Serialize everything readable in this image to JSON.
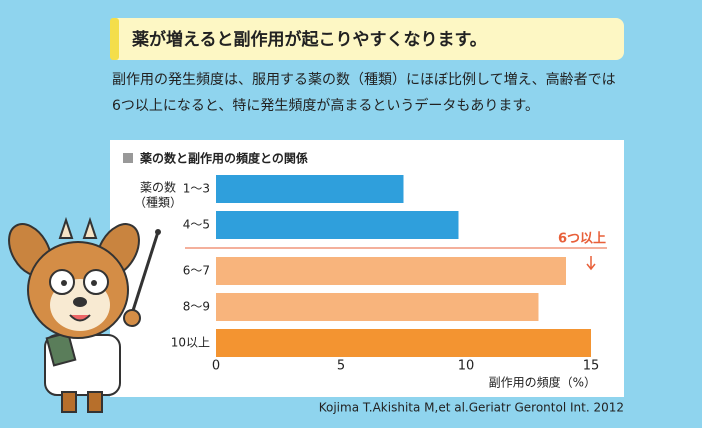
{
  "header": {
    "title": "薬が増えると副作用が起こりやすくなります。"
  },
  "intro": {
    "lines": [
      "副作用の発生頻度は、服用する薬の数（種類）にほぼ比例して増え、高齢者では",
      "6つ以上になると、特に発生頻度が高まるというデータもあります。"
    ]
  },
  "chart_data": {
    "type": "bar",
    "orientation": "horizontal",
    "title": "薬の数と副作用の頻度との関係",
    "ylabel_lines": [
      "薬の数",
      "（種類）"
    ],
    "xlabel": "副作用の頻度（%）",
    "categories": [
      "1〜3",
      "4〜5",
      "6〜7",
      "8〜9",
      "10以上"
    ],
    "values": [
      7.5,
      9.7,
      14.0,
      12.9,
      15.0
    ],
    "colors": [
      "#2f9fdc",
      "#2f9fdc",
      "#f8b47c",
      "#f8b47c",
      "#f39431"
    ],
    "xlim": [
      0,
      15
    ],
    "xticks": [
      0,
      5,
      10,
      15
    ],
    "annotation": "6つ以上"
  },
  "source": "Kojima T.Akishita M,et al.Geriatr Gerontol Int. 2012"
}
